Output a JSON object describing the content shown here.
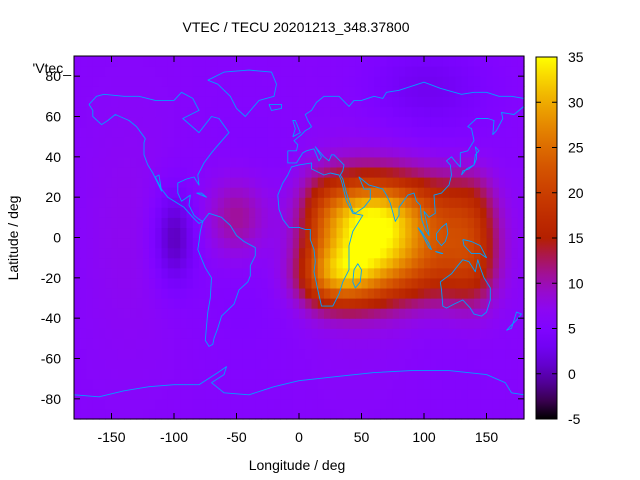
{
  "chart_data": {
    "type": "heatmap",
    "title": "VTEC / TECU 20201213_348.37800",
    "xlabel": "Longitude / deg",
    "ylabel": "Latitude / deg",
    "xlim": [
      -180,
      180
    ],
    "ylim": [
      -90,
      90
    ],
    "x_ticks": [
      -150,
      -100,
      -50,
      0,
      50,
      100,
      150
    ],
    "y_ticks": [
      -80,
      -60,
      -40,
      -20,
      0,
      20,
      40,
      60,
      80
    ],
    "x_tick_labels": [
      "-150",
      "-100",
      "-50",
      "0",
      "50",
      "100",
      "150"
    ],
    "y_tick_labels": [
      "-80",
      "-60",
      "-40",
      "-20",
      "0",
      "20",
      "40",
      "60",
      "80"
    ],
    "legend_key_label": "'Vtec_",
    "colorbar": {
      "range": [
        -5,
        35
      ],
      "ticks": [
        -5,
        0,
        5,
        10,
        15,
        20,
        25,
        30,
        35
      ],
      "tick_labels": [
        "-5",
        "0",
        "5",
        "10",
        "15",
        "20",
        "25",
        "30",
        "35"
      ],
      "colormap": "gnuplot-pm3d-default"
    },
    "grid_resolution_deg": 5,
    "background_vtec": 6,
    "features": [
      {
        "name": "equatorial-anomaly-maximum",
        "lon": 60,
        "lat": 0,
        "vtec": 34
      },
      {
        "name": "africa-plateau-west-edge",
        "lon": 5,
        "lat": 0,
        "vtec": 17
      },
      {
        "name": "southern-crest",
        "lon": 30,
        "lat": -20,
        "vtec": 28
      },
      {
        "name": "northern-crest",
        "lon": 60,
        "lat": 15,
        "vtec": 30
      },
      {
        "name": "asia-pacific-extension",
        "lon": 140,
        "lat": -5,
        "vtec": 20
      },
      {
        "name": "atlantic-secondary",
        "lon": -50,
        "lat": 10,
        "vtec": 12
      },
      {
        "name": "pacific-minimum",
        "lon": -100,
        "lat": 0,
        "vtec": 0
      },
      {
        "name": "north-polar-low",
        "lon": 100,
        "lat": 75,
        "vtec": 3
      }
    ],
    "overlay": "coastlines",
    "coastline_color": "#00a0ff"
  }
}
